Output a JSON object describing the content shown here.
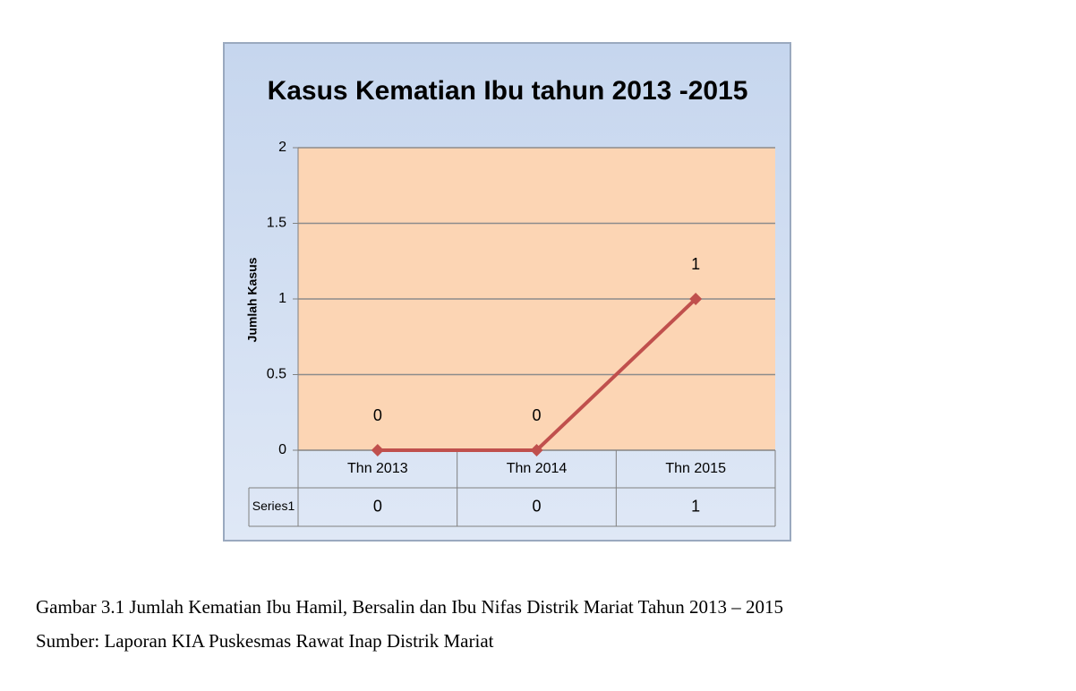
{
  "chart_data": {
    "type": "line",
    "title": "Kasus Kematian Ibu tahun 2013 -2015",
    "y_label": "Jumlah Kasus",
    "categories": [
      "Thn 2013",
      "Thn 2014",
      "Thn 2015"
    ],
    "series": [
      {
        "name": "Series1",
        "color": "#c0504d",
        "values": [
          0,
          0,
          1
        ]
      }
    ],
    "ylim": [
      0,
      2
    ],
    "yticks": [
      0,
      0.5,
      1,
      1.5,
      2
    ],
    "grid": true,
    "data_table": true
  },
  "caption": [
    "Gambar 3.1 Jumlah Kematian Ibu Hamil, Bersalin dan Ibu Nifas Distrik Mariat Tahun 2013 – 2015",
    "Sumber: Laporan KIA Puskesmas Rawat Inap Distrik Mariat"
  ]
}
